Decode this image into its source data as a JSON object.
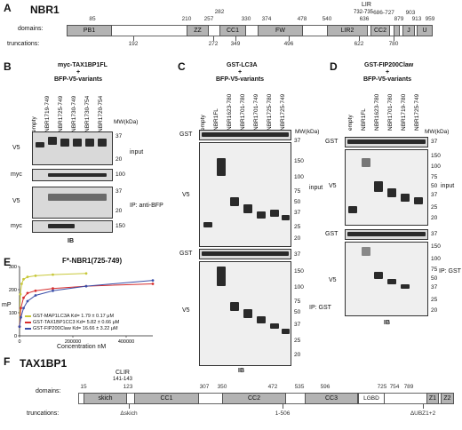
{
  "panelA": {
    "letter": "A",
    "title": "NBR1",
    "domains_label": "domains:",
    "truncations_label": "truncations:",
    "lir_label": "LIR",
    "lir_range": "732-735",
    "domains": [
      "PB1",
      "ZZ",
      "CC1",
      "FW",
      "LIR2",
      "CC2",
      "J",
      "U"
    ],
    "top_numbers": [
      "85",
      "210",
      "257",
      "282",
      "330",
      "374",
      "478",
      "540",
      "636",
      "686-727",
      "879",
      "903",
      "913",
      "959"
    ],
    "bottom_numbers": [
      "192",
      "272",
      "349",
      "496",
      "622",
      "780"
    ]
  },
  "panelB": {
    "letter": "B",
    "header1": "myc-TAX1BP1FL",
    "plus": "+",
    "header2": "BFP-V5-variants",
    "lanes": [
      "empty",
      "NBR1719-749",
      "NBR1725-749",
      "NBR1730-749",
      "NBR1730-754",
      "NBR1720-754"
    ],
    "mw_label": "MW(kDa)",
    "rows": [
      "V5",
      "myc",
      "V5",
      "myc"
    ],
    "mw": [
      "37",
      "20",
      "100",
      "37",
      "20",
      "150"
    ],
    "side_input": "input",
    "side_ip": "IP: anti-BFP",
    "footer": "IB"
  },
  "panelC": {
    "letter": "C",
    "header1": "GST-LC3A",
    "plus": "+",
    "header2": "BFP-V5-variants",
    "lanes": [
      "empty",
      "NBR1FL",
      "NBR1623-780",
      "NBR1701-780",
      "NBR1701-749",
      "NBR1725-780",
      "NBR1725-749"
    ],
    "mw_label": "MW(kDa)",
    "rows": [
      "GST",
      "V5",
      "GST",
      "V5"
    ],
    "mw_top": [
      "37"
    ],
    "mw_input": [
      "150",
      "100",
      "75",
      "50",
      "37",
      "25",
      "20"
    ],
    "mw_gst2": [
      "37"
    ],
    "mw_ip": [
      "150",
      "100",
      "75",
      "50",
      "37",
      "25",
      "20"
    ],
    "side_input": "input",
    "side_ip": "IP: GST",
    "footer": "IB"
  },
  "panelD": {
    "letter": "D",
    "header1": "GST-FIP200Claw",
    "plus": "+",
    "header2": "BFP-V5-variants",
    "lanes": [
      "empty",
      "NBR1FL",
      "NBR1623-780",
      "NBR1701-780",
      "NBR1719-780",
      "NBR1725-749"
    ],
    "mw_label": "MW(kDa)",
    "rows": [
      "GST",
      "V5",
      "GST",
      "V5"
    ],
    "mw_top": [
      "37"
    ],
    "mw_input": [
      "150",
      "100",
      "75",
      "50",
      "37",
      "25",
      "20"
    ],
    "mw_gst2": [
      "37"
    ],
    "mw_ip": [
      "150",
      "100",
      "75",
      "50",
      "37",
      "25",
      "20"
    ],
    "side_input": "input",
    "side_ip": "IP: GST",
    "footer": "IB"
  },
  "panelE": {
    "letter": "E",
    "title": "F*-NBR1(725-749)",
    "ylabel": "mP",
    "xlabel": "Concentration nM",
    "legend": [
      {
        "label": "GST-MAP1LC3A Kd= 1.79 ± 0.17 μM",
        "color": "#c8c83a"
      },
      {
        "label": "GST-TAX1BP1CC3 Kd= 5.82 ± 0.66 μM",
        "color": "#d62d2d"
      },
      {
        "label": "GST-FIP200Claw Kd= 16.66 ± 3.22 μM",
        "color": "#3a4ea8"
      }
    ]
  },
  "chart_data": {
    "type": "line",
    "title": "F*-NBR1(725-749)",
    "xlabel": "Concentration nM",
    "ylabel": "mP",
    "xlim": [
      0,
      500000
    ],
    "ylim": [
      0,
      300
    ],
    "xticks": [
      0,
      200000,
      400000
    ],
    "yticks": [
      0,
      100,
      200,
      300
    ],
    "series": [
      {
        "name": "GST-MAP1LC3A Kd= 1.79 ± 0.17 μM",
        "color": "#c8c83a",
        "x": [
          0,
          3000,
          8000,
          15000,
          30000,
          60000,
          125000,
          250000
        ],
        "y": [
          40,
          180,
          225,
          245,
          255,
          260,
          265,
          270
        ]
      },
      {
        "name": "GST-TAX1BP1CC3 Kd= 5.82 ± 0.66 μM",
        "color": "#d62d2d",
        "x": [
          0,
          5000,
          15000,
          30000,
          60000,
          125000,
          250000,
          500000
        ],
        "y": [
          40,
          120,
          165,
          185,
          195,
          205,
          215,
          225
        ]
      },
      {
        "name": "GST-FIP200Claw Kd= 16.66 ± 3.22 μM",
        "color": "#3a4ea8",
        "x": [
          0,
          5000,
          15000,
          30000,
          60000,
          125000,
          250000,
          500000
        ],
        "y": [
          40,
          80,
          120,
          150,
          175,
          195,
          215,
          240
        ]
      }
    ]
  },
  "panelF": {
    "letter": "F",
    "title": "TAX1BP1",
    "domains_label": "domains:",
    "truncations_label": "truncations:",
    "clir_label": "CLIR",
    "clir_range": "141-143",
    "domains": [
      "skich",
      "CC1",
      "CC2",
      "CC3",
      "LGBD",
      "Z1",
      "Z2"
    ],
    "top_numbers": [
      "15",
      "123",
      "307",
      "350",
      "472",
      "535",
      "596",
      "725",
      "754",
      "789"
    ],
    "bottom_numbers": [
      "Δskich",
      "1-506",
      "ΔUBZ1+2"
    ]
  }
}
